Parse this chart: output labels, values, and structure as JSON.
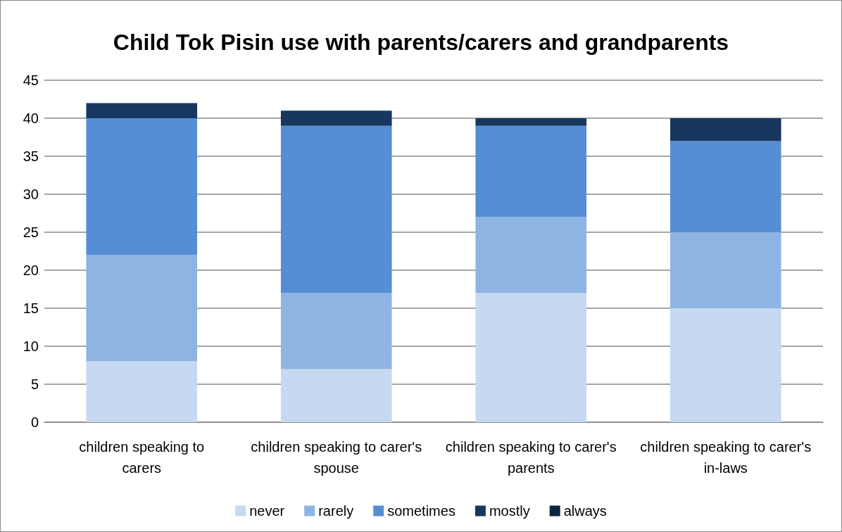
{
  "chart_data": {
    "type": "bar",
    "title": "Child Tok Pisin use with parents/carers and grandparents",
    "categories": [
      "children speaking to carers",
      "children speaking to carer's spouse",
      "children speaking to carer's parents",
      "children speaking to carer's in-laws"
    ],
    "series": [
      {
        "name": "never",
        "color": "#c6d9f1",
        "values": [
          8,
          7,
          17,
          15
        ]
      },
      {
        "name": "rarely",
        "color": "#8eb4e3",
        "values": [
          14,
          10,
          10,
          10
        ]
      },
      {
        "name": "sometimes",
        "color": "#558ed5",
        "values": [
          18,
          22,
          12,
          12
        ]
      },
      {
        "name": "mostly",
        "color": "#17375e",
        "values": [
          2,
          2,
          1,
          3
        ]
      },
      {
        "name": "always",
        "color": "#0f243e",
        "values": [
          0,
          0,
          0,
          0
        ]
      }
    ],
    "stacked": true,
    "ylim": [
      0,
      45
    ],
    "yticks": [
      0,
      5,
      10,
      15,
      20,
      25,
      30,
      35,
      40,
      45
    ],
    "grid": "y",
    "legend": "bottom"
  }
}
